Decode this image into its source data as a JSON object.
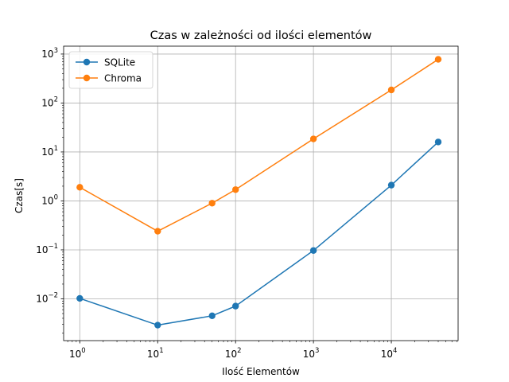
{
  "chart_data": {
    "type": "line",
    "title": "Czas w zależności od ilości elementów",
    "xlabel": "Ilość Elementów",
    "ylabel": "Czas[s]",
    "xscale": "log",
    "yscale": "log",
    "xlim": [
      0.62,
      72000
    ],
    "ylim": [
      0.0014,
      1450
    ],
    "grid": true,
    "legend_position": "top-left",
    "x_ticks": [
      {
        "base": "10",
        "exp": "0",
        "value": 1
      },
      {
        "base": "10",
        "exp": "1",
        "value": 10
      },
      {
        "base": "10",
        "exp": "2",
        "value": 100
      },
      {
        "base": "10",
        "exp": "3",
        "value": 1000
      },
      {
        "base": "10",
        "exp": "4",
        "value": 10000
      }
    ],
    "y_ticks": [
      {
        "base": "10",
        "exp": "−2",
        "value": 0.01
      },
      {
        "base": "10",
        "exp": "−1",
        "value": 0.1
      },
      {
        "base": "10",
        "exp": "0",
        "value": 1
      },
      {
        "base": "10",
        "exp": "1",
        "value": 10
      },
      {
        "base": "10",
        "exp": "2",
        "value": 100
      },
      {
        "base": "10",
        "exp": "3",
        "value": 1000
      }
    ],
    "x": [
      1,
      10,
      50,
      100,
      1000,
      10000,
      40000
    ],
    "series": [
      {
        "name": "SQLite",
        "color": "#1f77b4",
        "values": [
          0.0102,
          0.0029,
          0.0045,
          0.0071,
          0.097,
          2.1,
          16
        ]
      },
      {
        "name": "Chroma",
        "color": "#ff7f0e",
        "values": [
          1.9,
          0.24,
          0.9,
          1.7,
          18.5,
          185,
          780
        ]
      }
    ]
  }
}
